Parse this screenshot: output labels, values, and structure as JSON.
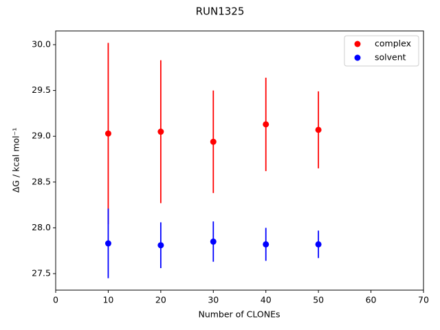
{
  "chart_data": {
    "type": "errorbar-scatter",
    "title": "RUN1325",
    "x_label": "Number of CLONEs",
    "y_label": "ΔG / kcal mol⁻¹",
    "x": [
      10,
      20,
      30,
      40,
      50
    ],
    "series": [
      {
        "name": "complex",
        "color": "#ff0000",
        "values": [
          29.03,
          29.05,
          28.94,
          29.13,
          29.07
        ],
        "errors": [
          0.99,
          0.78,
          0.56,
          0.51,
          0.42
        ]
      },
      {
        "name": "solvent",
        "color": "#0000ff",
        "values": [
          27.83,
          27.81,
          27.85,
          27.82,
          27.82
        ],
        "errors": [
          0.38,
          0.25,
          0.22,
          0.18,
          0.15
        ]
      }
    ],
    "xlim": [
      0,
      70
    ],
    "xticks": [
      0,
      10,
      20,
      30,
      40,
      50,
      60,
      70
    ],
    "ylim": [
      27.32,
      30.15
    ],
    "yticks": [
      27.5,
      {
        "value": 28,
        "label": "28.0"
      },
      28.5,
      {
        "value": 29,
        "label": "29.0"
      },
      29.5,
      {
        "value": 30,
        "label": "30.0"
      }
    ],
    "legend": "upper right",
    "grid": false
  }
}
